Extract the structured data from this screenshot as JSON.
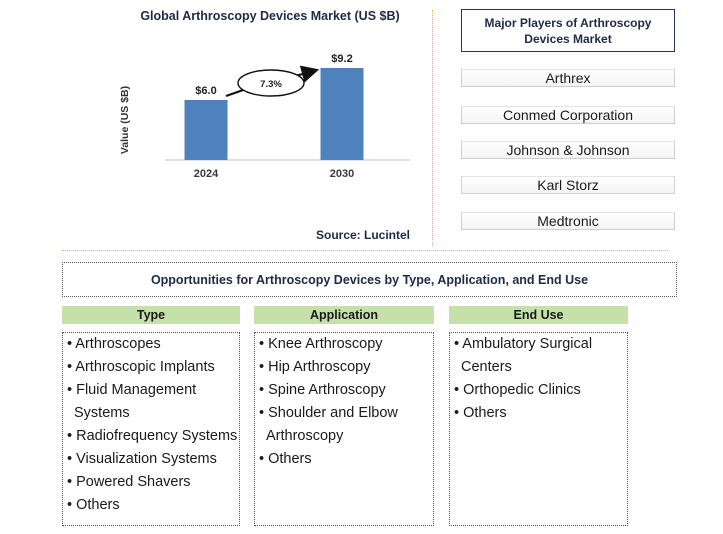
{
  "chart_data": {
    "type": "bar",
    "title": "Global Arthroscopy Devices Market (US $B)",
    "ylabel": "Value (US $B)",
    "xlabel": "",
    "categories": [
      "2024",
      "2030"
    ],
    "values": [
      6.0,
      9.2
    ],
    "value_labels": [
      "$6.0",
      "$9.2"
    ],
    "ylim": [
      0,
      11.5
    ],
    "grid": false,
    "bar_color": "#4f81bd",
    "cagr_label": "7.3%",
    "source": "Source: Lucintel"
  },
  "players": {
    "title": "Major Players of Arthroscopy Devices Market",
    "items": [
      "Arthrex",
      "Conmed Corporation",
      "Johnson & Johnson",
      "Karl Storz",
      "Medtronic"
    ]
  },
  "opportunities": {
    "title": "Opportunities for Arthroscopy Devices by Type, Application, and End Use",
    "columns": [
      {
        "header": "Type",
        "lines": [
          "• Arthroscopes",
          "• Arthroscopic Implants",
          "• Fluid Management",
          "  Systems",
          "• Radiofrequency Systems",
          "• Visualization Systems",
          "• Powered Shavers",
          "• Others"
        ]
      },
      {
        "header": "Application",
        "lines": [
          "• Knee Arthroscopy",
          "• Hip Arthroscopy",
          "• Spine Arthroscopy",
          "• Shoulder and Elbow",
          "  Arthroscopy",
          "• Others"
        ]
      },
      {
        "header": "End Use",
        "lines": [
          "• Ambulatory Surgical",
          "  Centers",
          "• Orthopedic Clinics",
          "• Others"
        ]
      }
    ]
  },
  "colors": {
    "accent_bar": "#4f81bd",
    "header_green": "#c5e0a8",
    "title_navy": "#1f2a44",
    "separator_gold": "#e8b44a"
  }
}
